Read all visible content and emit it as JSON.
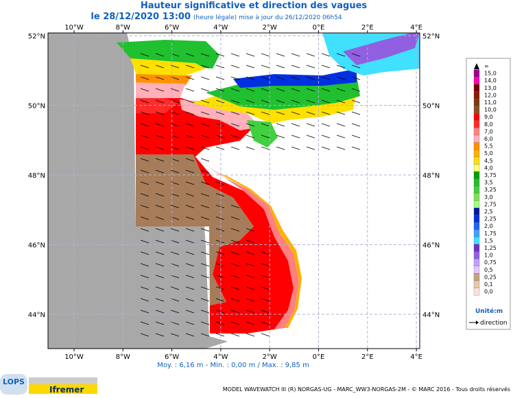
{
  "header": {
    "title": "Hauteur significative et direction des vagues",
    "date": "le 28/12/2020 13:00",
    "update_note": "(heure légale) mise à jour du 26/12/2020 06h54"
  },
  "map": {
    "lon_ticks": [
      "10°W",
      "8°W",
      "6°W",
      "4°W",
      "2°W",
      "0°E",
      "2°E",
      "4°E"
    ],
    "lat_ticks": [
      "52°N",
      "50°N",
      "48°N",
      "46°N",
      "44°N"
    ],
    "stats": "Moy. : 6,16 m   -   Min. : 0,00 m / Max. : 9,85 m"
  },
  "legend": {
    "labels": [
      "∞",
      "15,0",
      "14,0",
      "13,0",
      "12,0",
      "11,0",
      "10,0",
      "9,0",
      "8,0",
      "7,0",
      "6,0",
      "5,5",
      "5,0",
      "4,5",
      "4,0",
      "3,75",
      "3,5",
      "3,25",
      "3,0",
      "2,75",
      "2,5",
      "2,25",
      "2,0",
      "1,75",
      "1,5",
      "1,25",
      "1,0",
      "0,75",
      "0,5",
      "0,25",
      "0,1",
      "0,0"
    ],
    "colors": [
      "#000000",
      "#9a0090",
      "#ff00b0",
      "#7a0000",
      "#8b1a00",
      "#7a3a10",
      "#8c5020",
      "#ff0000",
      "#ff2a2a",
      "#ff8080",
      "#ffb0b8",
      "#ff9000",
      "#ffb000",
      "#ffe000",
      "#ffff70",
      "#00a000",
      "#20c030",
      "#40d040",
      "#80e050",
      "#a0ff80",
      "#0018a0",
      "#0030e0",
      "#2060ff",
      "#40a0ff",
      "#40e0ff",
      "#7030c0",
      "#9060e0",
      "#c0a0ff",
      "#e0c8ff",
      "#c8a080",
      "#e8c8a8",
      "#f8e0e0"
    ],
    "unit": "Unité:m",
    "direction": "direction"
  },
  "footer": {
    "credits": "MODEL WAVEWATCH III (R) NORGAS-UG - MARC_WW3-NORGAS-2M - © MARC 2016 - Tous droits réservés",
    "logo_lops": "LOPS",
    "logo_ifremer": "Ifremer"
  }
}
